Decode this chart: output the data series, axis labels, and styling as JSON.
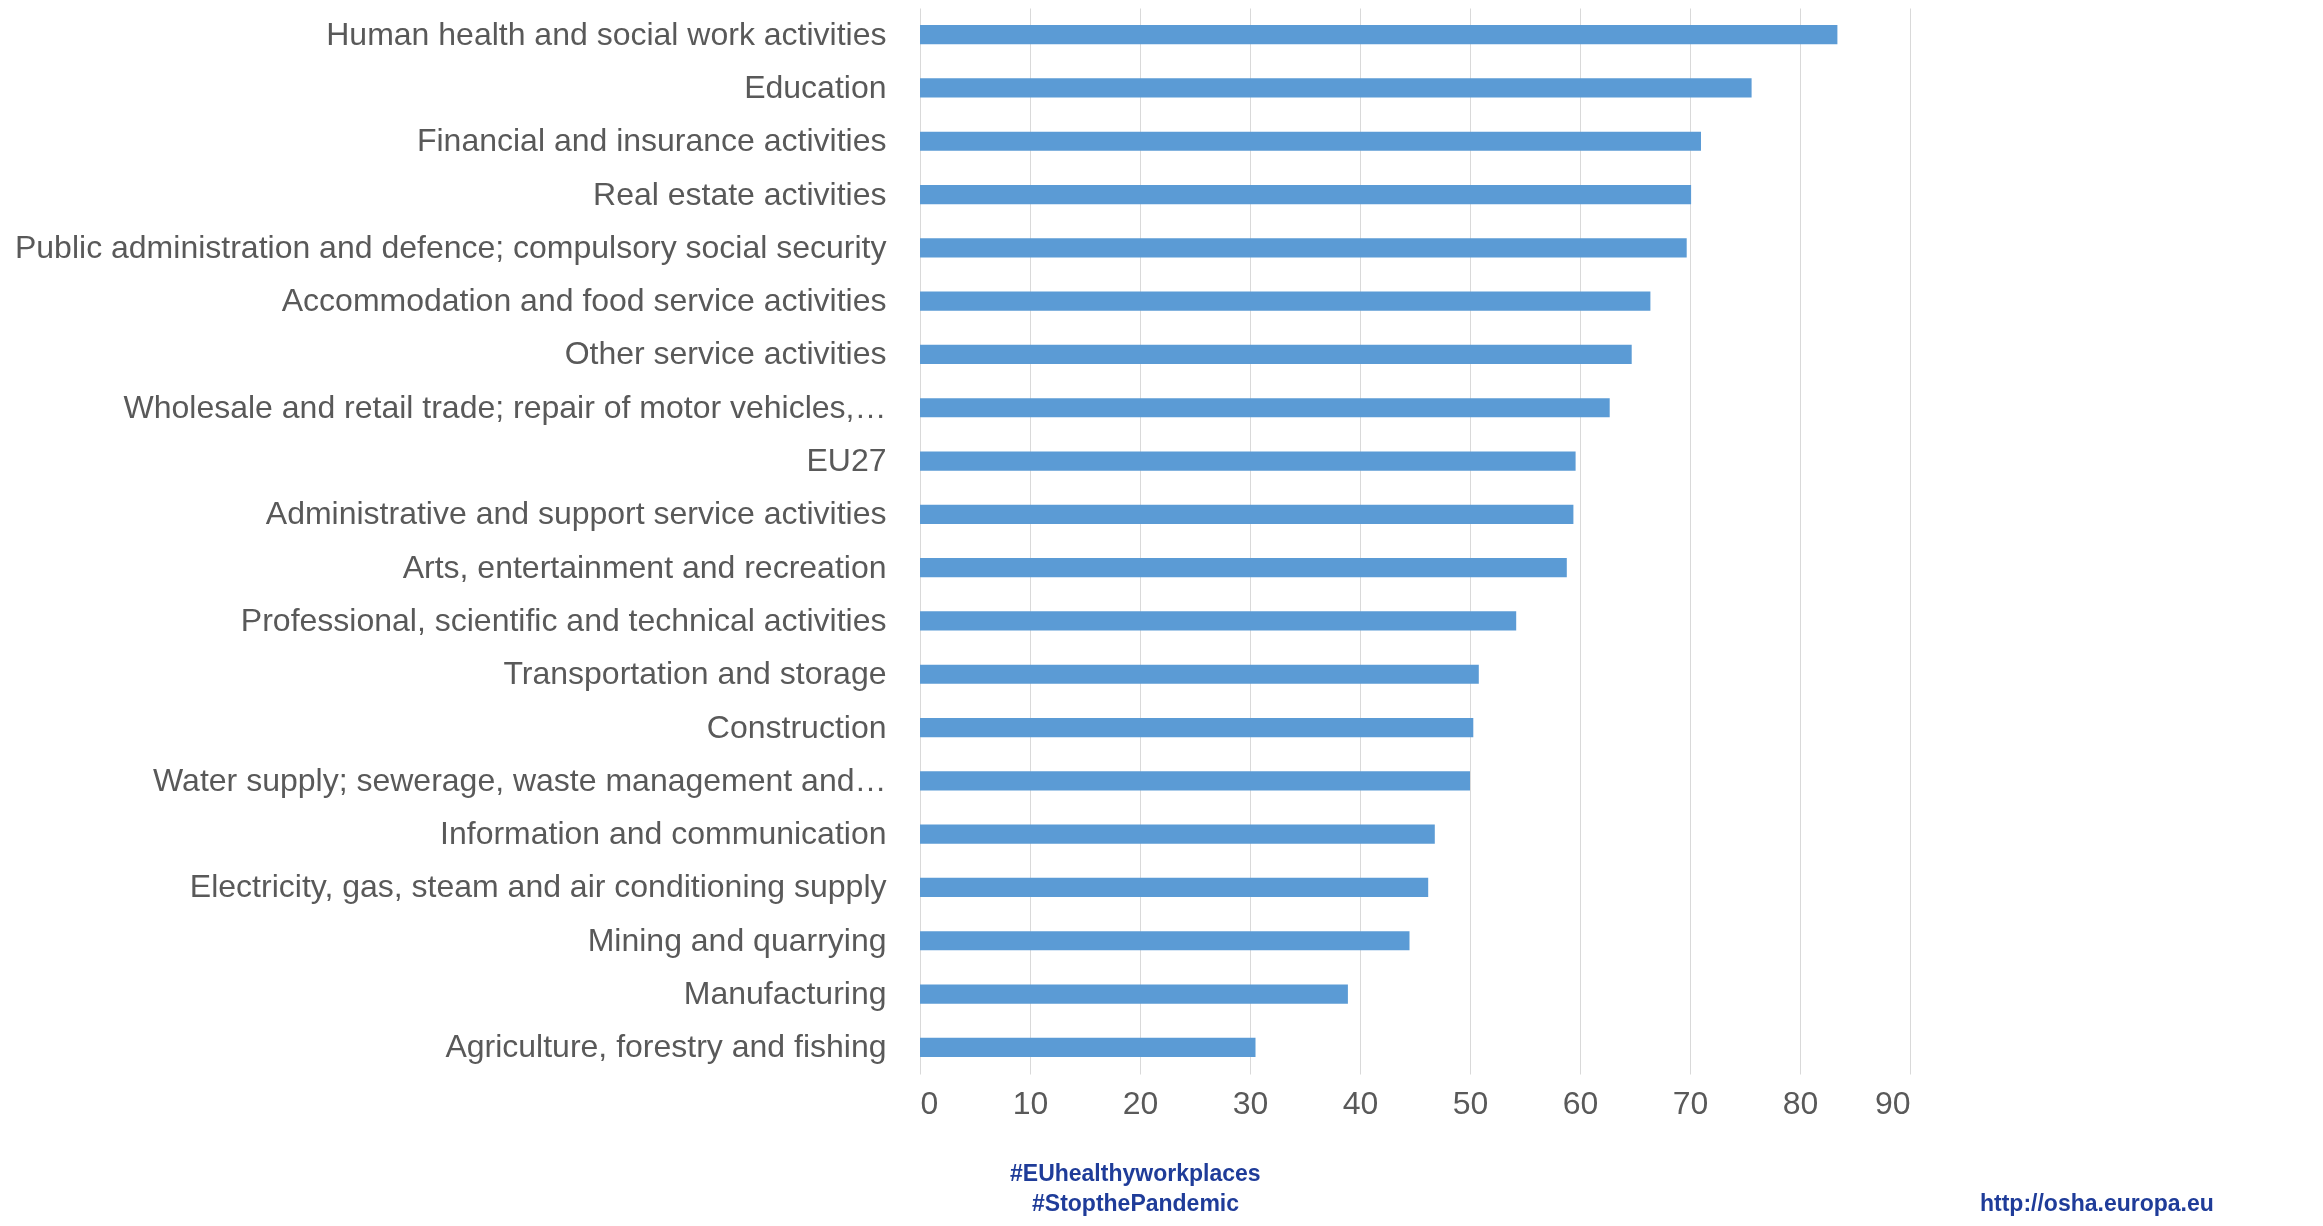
{
  "chart_data": {
    "type": "bar",
    "orientation": "horizontal",
    "categories": [
      "Human health and social work activities",
      "Education",
      "Financial and insurance activities",
      "Real estate activities",
      "Public administration and defence; compulsory social security",
      "Accommodation and food service activities",
      "Other service activities",
      "Wholesale and retail trade; repair of motor vehicles,…",
      "EU27",
      "Administrative and support service activities",
      "Arts, entertainment and recreation",
      "Professional, scientific and technical activities",
      "Transportation and storage",
      "Construction",
      "Water supply; sewerage, waste management and…",
      "Information and communication",
      "Electricity, gas, steam and air conditioning supply",
      "Mining and quarrying",
      "Manufacturing",
      "Agriculture, forestry and fishing"
    ],
    "values": [
      83.4,
      75.6,
      71.0,
      70.1,
      69.7,
      66.4,
      64.7,
      62.7,
      59.6,
      59.4,
      58.8,
      54.2,
      50.8,
      50.3,
      50.0,
      46.8,
      46.2,
      44.5,
      38.9,
      30.5
    ],
    "color": "#5b9bd5",
    "xlim": [
      0,
      90
    ],
    "xticks": [
      0,
      10,
      20,
      30,
      40,
      50,
      60,
      70,
      80,
      90
    ],
    "grid": "x",
    "annotations": [
      "#EUhealthyworkplaces",
      "#StopthePandemic",
      "http://osha.europa.eu"
    ]
  }
}
